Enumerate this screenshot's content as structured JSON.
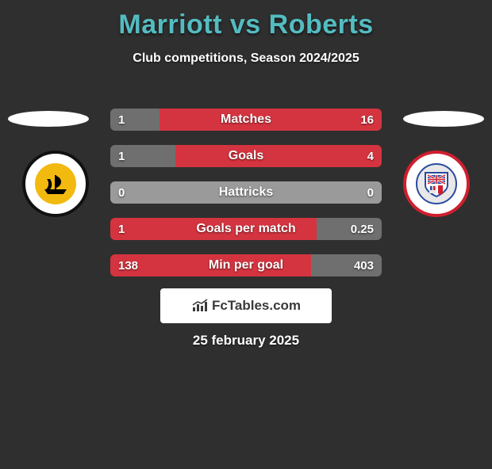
{
  "title": "Marriott vs Roberts",
  "subtitle": "Club competitions, Season 2024/2025",
  "date": "25 february 2025",
  "attribution": "FcTables.com",
  "colors": {
    "background": "#2f2f2f",
    "accent": "#53bcc1",
    "bar_left": "#d4343f",
    "bar_right": "#6f6f6f",
    "neutral": "#9a9a9a",
    "white": "#ffffff"
  },
  "crest_left": {
    "ring": "#111111",
    "disc": "#f2b90f",
    "ship": "#000000"
  },
  "crest_right": {
    "ring": "#cf1f2e",
    "disc": "#e8e8e8",
    "inner_border": "#2b4aa0",
    "flag_blue": "#2b4aa0",
    "flag_red": "#cf1f2e"
  },
  "bars": [
    {
      "label": "Matches",
      "left_val": "1",
      "right_val": "16",
      "left_pct": 18,
      "right_pct": 82,
      "lower_is_better": false
    },
    {
      "label": "Goals",
      "left_val": "1",
      "right_val": "4",
      "left_pct": 24,
      "right_pct": 76,
      "lower_is_better": false
    },
    {
      "label": "Hattricks",
      "left_val": "0",
      "right_val": "0",
      "left_pct": 50,
      "right_pct": 50,
      "lower_is_better": false,
      "neutral": true
    },
    {
      "label": "Goals per match",
      "left_val": "1",
      "right_val": "0.25",
      "left_pct": 76,
      "right_pct": 24,
      "lower_is_better": false
    },
    {
      "label": "Min per goal",
      "left_val": "138",
      "right_val": "403",
      "left_pct": 74,
      "right_pct": 26,
      "lower_is_better": true
    }
  ]
}
